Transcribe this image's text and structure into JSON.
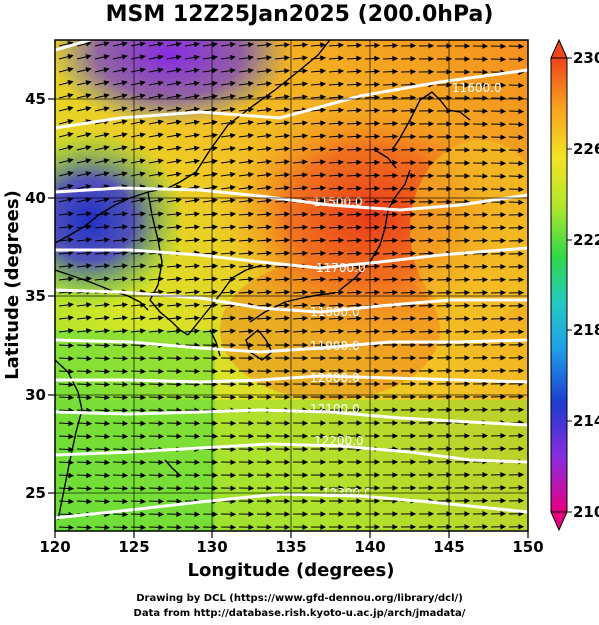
{
  "title": "MSM 12Z25Jan2025 (200.0hPa)",
  "x_axis": {
    "label": "Longitude (degrees)",
    "range": [
      120,
      150
    ],
    "ticks": [
      "120",
      "125",
      "130",
      "135",
      "140",
      "145",
      "150"
    ]
  },
  "y_axis": {
    "label": "Latitude  (degrees)",
    "range": [
      22.5,
      47.5
    ],
    "ticks": [
      "25",
      "30",
      "35",
      "40",
      "45"
    ]
  },
  "colorbar": {
    "range": [
      210,
      230
    ],
    "labels": [
      "230",
      "226",
      "222",
      "218",
      "214",
      "210"
    ],
    "colors": [
      "#e6007e",
      "#8a2be2",
      "#1e3cd0",
      "#1fa0e8",
      "#23c9c2",
      "#2ed84a",
      "#b8e62a",
      "#f2e426",
      "#f7a21e",
      "#f0441a"
    ]
  },
  "contours": [
    {
      "label": "11600.0"
    },
    {
      "label": "11500.0"
    },
    {
      "label": "11700.0"
    },
    {
      "label": "11800.0"
    },
    {
      "label": "11900.0"
    },
    {
      "label": "12000.0"
    },
    {
      "label": "12100.0"
    },
    {
      "label": "12200.0"
    },
    {
      "label": "12300.0"
    }
  ],
  "credits": {
    "line1": "Drawing by DCL (https://www.gfd-dennou.org/library/dcl/)",
    "line2": "Data from http://database.rish.kyoto-u.ac.jp/arch/jmadata/"
  }
}
